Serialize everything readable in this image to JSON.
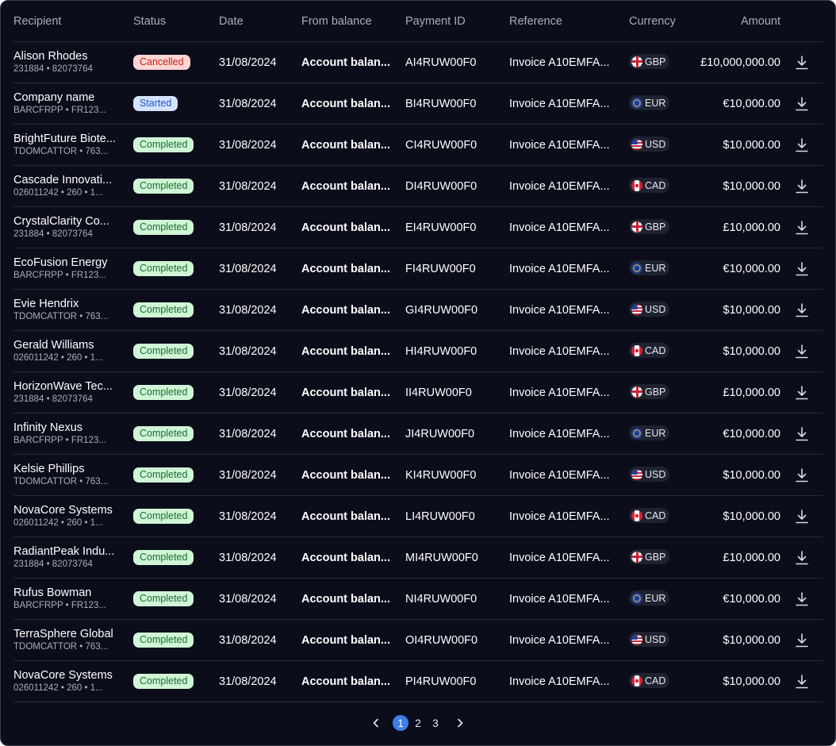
{
  "columns": {
    "recipient": "Recipient",
    "status": "Status",
    "date": "Date",
    "from_balance": "From balance",
    "payment_id": "Payment ID",
    "reference": "Reference",
    "currency": "Currency",
    "amount": "Amount"
  },
  "rows": [
    {
      "name": "Alison Rhodes",
      "sub": "231884 • 82073764",
      "status": "Cancelled",
      "status_kind": "cancelled",
      "date": "31/08/2024",
      "from": "Account balan...",
      "pid": "AI4RUW00F0",
      "ref": "Invoice A10EMFA...",
      "currency": "GBP",
      "flag": "gbp-flag-icon",
      "amount": "£10,000,000.00"
    },
    {
      "name": "Company name",
      "sub": "BARCFRPP • FR123...",
      "status": "Started",
      "status_kind": "started",
      "date": "31/08/2024",
      "from": "Account balan...",
      "pid": "BI4RUW00F0",
      "ref": "Invoice A10EMFA...",
      "currency": "EUR",
      "flag": "eur-flag-icon",
      "amount": "€10,000.00"
    },
    {
      "name": "BrightFuture Biote...",
      "sub": "TDOMCATTOR • 763...",
      "status": "Completed",
      "status_kind": "completed",
      "date": "31/08/2024",
      "from": "Account balan...",
      "pid": "CI4RUW00F0",
      "ref": "Invoice A10EMFA...",
      "currency": "USD",
      "flag": "usd-flag-icon",
      "amount": "$10,000.00"
    },
    {
      "name": "Cascade Innovati...",
      "sub": "026011242 • 260 • 1...",
      "status": "Completed",
      "status_kind": "completed",
      "date": "31/08/2024",
      "from": "Account balan...",
      "pid": "DI4RUW00F0",
      "ref": "Invoice A10EMFA...",
      "currency": "CAD",
      "flag": "cad-flag-icon",
      "amount": "$10,000.00"
    },
    {
      "name": "CrystalClarity Co...",
      "sub": "231884 • 82073764",
      "status": "Completed",
      "status_kind": "completed",
      "date": "31/08/2024",
      "from": "Account balan...",
      "pid": "EI4RUW00F0",
      "ref": "Invoice A10EMFA...",
      "currency": "GBP",
      "flag": "gbp-flag-icon",
      "amount": "£10,000.00"
    },
    {
      "name": "EcoFusion Energy",
      "sub": "BARCFRPP • FR123...",
      "status": "Completed",
      "status_kind": "completed",
      "date": "31/08/2024",
      "from": "Account balan...",
      "pid": "FI4RUW00F0",
      "ref": "Invoice A10EMFA...",
      "currency": "EUR",
      "flag": "eur-flag-icon",
      "amount": "€10,000.00"
    },
    {
      "name": "Evie Hendrix",
      "sub": "TDOMCATTOR • 763...",
      "status": "Completed",
      "status_kind": "completed",
      "date": "31/08/2024",
      "from": "Account balan...",
      "pid": "GI4RUW00F0",
      "ref": "Invoice A10EMFA...",
      "currency": "USD",
      "flag": "usd-flag-icon",
      "amount": "$10,000.00"
    },
    {
      "name": "Gerald Williams",
      "sub": "026011242 • 260 • 1...",
      "status": "Completed",
      "status_kind": "completed",
      "date": "31/08/2024",
      "from": "Account balan...",
      "pid": "HI4RUW00F0",
      "ref": "Invoice A10EMFA...",
      "currency": "CAD",
      "flag": "cad-flag-icon",
      "amount": "$10,000.00"
    },
    {
      "name": "HorizonWave Tec...",
      "sub": "231884 • 82073764",
      "status": "Completed",
      "status_kind": "completed",
      "date": "31/08/2024",
      "from": "Account balan...",
      "pid": "II4RUW00F0",
      "ref": "Invoice A10EMFA...",
      "currency": "GBP",
      "flag": "gbp-flag-icon",
      "amount": "£10,000.00"
    },
    {
      "name": "Infinity Nexus",
      "sub": "BARCFRPP • FR123...",
      "status": "Completed",
      "status_kind": "completed",
      "date": "31/08/2024",
      "from": "Account balan...",
      "pid": "JI4RUW00F0",
      "ref": "Invoice A10EMFA...",
      "currency": "EUR",
      "flag": "eur-flag-icon",
      "amount": "€10,000.00"
    },
    {
      "name": "Kelsie Phillips",
      "sub": "TDOMCATTOR • 763...",
      "status": "Completed",
      "status_kind": "completed",
      "date": "31/08/2024",
      "from": "Account balan...",
      "pid": "KI4RUW00F0",
      "ref": "Invoice A10EMFA...",
      "currency": "USD",
      "flag": "usd-flag-icon",
      "amount": "$10,000.00"
    },
    {
      "name": "NovaCore Systems",
      "sub": "026011242 • 260 • 1...",
      "status": "Completed",
      "status_kind": "completed",
      "date": "31/08/2024",
      "from": "Account balan...",
      "pid": "LI4RUW00F0",
      "ref": "Invoice A10EMFA...",
      "currency": "CAD",
      "flag": "cad-flag-icon",
      "amount": "$10,000.00"
    },
    {
      "name": "RadiantPeak Indu...",
      "sub": "231884 • 82073764",
      "status": "Completed",
      "status_kind": "completed",
      "date": "31/08/2024",
      "from": "Account balan...",
      "pid": "MI4RUW00F0",
      "ref": "Invoice A10EMFA...",
      "currency": "GBP",
      "flag": "gbp-flag-icon",
      "amount": "£10,000.00"
    },
    {
      "name": "Rufus Bowman",
      "sub": "BARCFRPP • FR123...",
      "status": "Completed",
      "status_kind": "completed",
      "date": "31/08/2024",
      "from": "Account balan...",
      "pid": "NI4RUW00F0",
      "ref": "Invoice A10EMFA...",
      "currency": "EUR",
      "flag": "eur-flag-icon",
      "amount": "€10,000.00"
    },
    {
      "name": "TerraSphere Global",
      "sub": "TDOMCATTOR • 763...",
      "status": "Completed",
      "status_kind": "completed",
      "date": "31/08/2024",
      "from": "Account balan...",
      "pid": "OI4RUW00F0",
      "ref": "Invoice A10EMFA...",
      "currency": "USD",
      "flag": "usd-flag-icon",
      "amount": "$10,000.00"
    },
    {
      "name": "NovaCore Systems",
      "sub": "026011242 • 260 • 1...",
      "status": "Completed",
      "status_kind": "completed",
      "date": "31/08/2024",
      "from": "Account balan...",
      "pid": "PI4RUW00F0",
      "ref": "Invoice A10EMFA...",
      "currency": "CAD",
      "flag": "cad-flag-icon",
      "amount": "$10,000.00"
    }
  ],
  "download_icon": "download-icon",
  "pagination": {
    "prev_icon": "chevron-left-icon",
    "next_icon": "chevron-right-icon",
    "pages": [
      "1",
      "2",
      "3"
    ],
    "current": "1"
  },
  "colors": {
    "background": "#0b0d1a",
    "cancelled_bg": "#fdd5d3",
    "started_bg": "#d4e2fc",
    "completed_bg": "#cff5d6",
    "active_page": "#3f7ee8"
  }
}
